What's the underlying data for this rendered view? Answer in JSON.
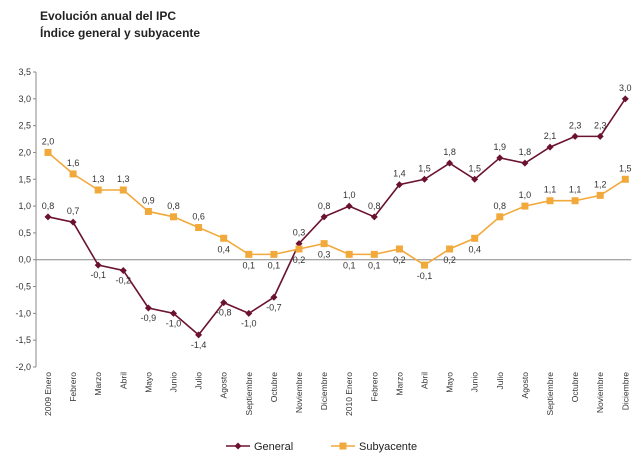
{
  "chart_data": {
    "type": "line",
    "title": "Evolución anual del IPC",
    "subtitle": "Índice general y subyacente",
    "xlabel": "",
    "ylabel": "",
    "ylim": [
      -2.0,
      3.5
    ],
    "yticks": [
      "3,5",
      "3,0",
      "2,5",
      "2,0",
      "1,5",
      "1,0",
      "0,5",
      "0,0",
      "-0,5",
      "-1,0",
      "-1,5",
      "-2,0"
    ],
    "grid": false,
    "legend": "bottom",
    "categories": [
      "2009 Enero",
      "Febrero",
      "Marzo",
      "Abril",
      "Mayo",
      "Junio",
      "Julio",
      "Agosto",
      "Septiembre",
      "Octubre",
      "Noviembre",
      "Diciembre",
      "2010 Enero",
      "Febrero",
      "Marzo",
      "Abril",
      "Mayo",
      "Junio",
      "Julio",
      "Agosto",
      "Septiembre",
      "Octubre",
      "Noviembre",
      "Diciembre"
    ],
    "series": [
      {
        "name": "General",
        "color": "#6b1230",
        "marker": "diamond",
        "values": [
          0.8,
          0.7,
          -0.1,
          -0.2,
          -0.9,
          -1.0,
          -1.4,
          -0.8,
          -1.0,
          -0.7,
          0.3,
          0.8,
          1.0,
          0.8,
          1.4,
          1.5,
          1.8,
          1.5,
          1.9,
          1.8,
          2.1,
          2.3,
          2.3,
          3.0
        ],
        "labels": [
          "0,8",
          "0,7",
          "-0,1",
          "-0,2",
          "-0,9",
          "-1,0",
          "-1,4",
          "-0,8",
          "-1,0",
          "-0,7",
          "0,3",
          "0,8",
          "1,0",
          "0,8",
          "1,4",
          "1,5",
          "1,8",
          "1,5",
          "1,9",
          "1,8",
          "2,1",
          "2,3",
          "2,3",
          "3,0"
        ]
      },
      {
        "name": "Subyacente",
        "color": "#f2a93b",
        "marker": "square",
        "values": [
          2.0,
          1.6,
          1.3,
          1.3,
          0.9,
          0.8,
          0.6,
          0.4,
          0.1,
          0.1,
          0.2,
          0.3,
          0.1,
          0.1,
          0.2,
          -0.1,
          0.2,
          0.4,
          0.8,
          1.0,
          1.1,
          1.1,
          1.2,
          1.5
        ],
        "labels": [
          "2,0",
          "1,6",
          "1,3",
          "1,3",
          "0,9",
          "0,8",
          "0,6",
          "0,4",
          "0,1",
          "0,1",
          "0,2",
          "0,3",
          "0,1",
          "0,1",
          "0,2",
          "-0,1",
          "0,2",
          "0,4",
          "0,8",
          "1,0",
          "1,1",
          "1,1",
          "1,2",
          "1,5"
        ]
      }
    ]
  }
}
